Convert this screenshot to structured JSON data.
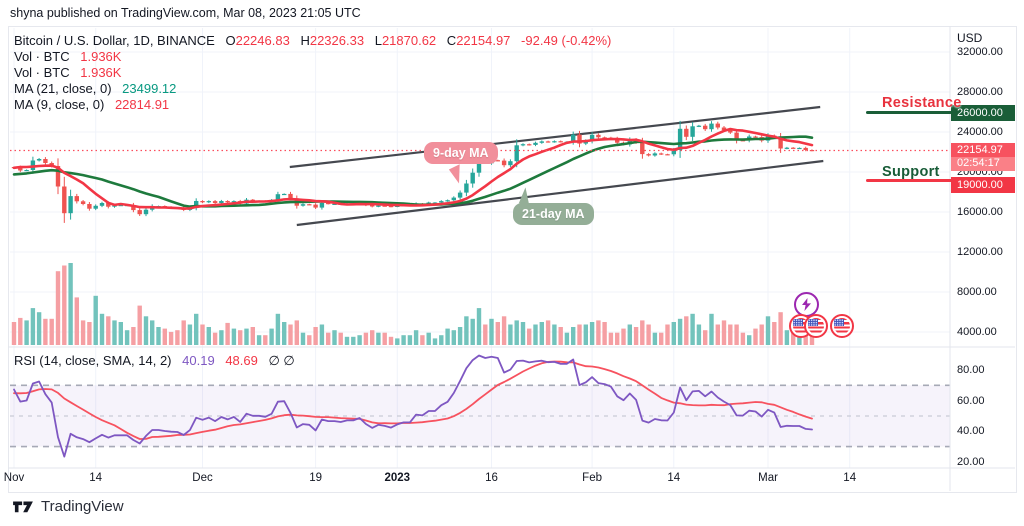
{
  "header": {
    "published_line": "shyna published on TradingView.com, Mar 08, 2023 21:05 UTC"
  },
  "legend": {
    "title": "Bitcoin / U.S. Dollar, 1D, BINANCE",
    "o_label": "O",
    "o": "22246.83",
    "h_label": "H",
    "h": "22326.33",
    "l_label": "L",
    "l": "21870.62",
    "c_label": "C",
    "c": "22154.97",
    "change": "-92.49 (-0.42%)",
    "vol1_label": "Vol · BTC",
    "vol1_value": "1.936K",
    "vol2_label": "Vol · BTC",
    "vol2_value": "1.936K",
    "ma21_label": "MA (21, close, 0)",
    "ma21_value": "23499.12",
    "ma9_label": "MA (9, close, 0)",
    "ma9_value": "22814.91",
    "rsi_label": "RSI (14, close, SMA, 14, 2)",
    "rsi_value1": "40.19",
    "rsi_value2": "48.69",
    "rsi_empty": "∅  ∅"
  },
  "annotations": {
    "resistance": "Resistance",
    "support": "Support",
    "ma9_bubble": "9-day MA",
    "ma21_bubble": "21-day MA"
  },
  "axis": {
    "currency": "USD",
    "price_tag": {
      "price": "22154.97",
      "countdown": "02:54:17"
    },
    "resistance_badge": "26000.00",
    "support_badge": "19000.00"
  },
  "footer": {
    "brand": "TradingView"
  },
  "colors": {
    "up": "#26a69a",
    "down": "#ef5350",
    "vol_up": "#72c3bc",
    "vol_down": "#f59fa3",
    "ma_fast": "#f23645",
    "ma_slow": "#1e7a3d",
    "rsi": "#7e57c2",
    "rsi_signal": "#f7525f",
    "grid": "#f0f3fa",
    "channel": "#45484f",
    "dotted_last": "#fb4d5c",
    "band_fill": "rgba(126,87,194,0.07)",
    "dash_strong": "#a6a9b6",
    "dash_light": "#c9ccd6",
    "separator": "#e3e6ec"
  },
  "chart_data": {
    "type": "candlestick",
    "symbol": "BINANCE:BTCUSD",
    "timeframe": "1D",
    "start_date": "2022-11-01",
    "title": "Bitcoin / U.S. Dollar, 1D, BINANCE",
    "price_axis_title": "USD",
    "price_ticks": [
      32000,
      28000,
      24000,
      20000,
      16000,
      12000,
      8000,
      4000
    ],
    "rsi_ticks": [
      80,
      60,
      40,
      20
    ],
    "rsi_levels": {
      "upper": 70,
      "middle": 50,
      "lower": 30
    },
    "x_ticks": [
      {
        "label": "Nov",
        "day": 0
      },
      {
        "label": "14",
        "day": 13
      },
      {
        "label": "Dec",
        "day": 30
      },
      {
        "label": "19",
        "day": 48
      },
      {
        "label": "2023",
        "day": 61,
        "bold": true
      },
      {
        "label": "16",
        "day": 76
      },
      {
        "label": "Feb",
        "day": 92
      },
      {
        "label": "14",
        "day": 105
      },
      {
        "label": "Mar",
        "day": 120
      },
      {
        "label": "14",
        "day": 133
      }
    ],
    "price_ylim": [
      2700,
      34200
    ],
    "rsi_ylim": [
      16,
      93
    ],
    "x_range_days": [
      0,
      136
    ],
    "last": {
      "price": 22154.97,
      "countdown": "02:54:17"
    },
    "levels": {
      "resistance": 26000,
      "support": 19000
    },
    "channel": {
      "upper": [
        [
          43.9,
          20500
        ],
        [
          128.3,
          26500
        ]
      ],
      "lower": [
        [
          45.0,
          14700
        ],
        [
          128.8,
          21100
        ]
      ]
    },
    "indicators": {
      "ma_fast_len": 9,
      "ma_slow_len": 21,
      "rsi_len": 14,
      "rsi_smooth_len": 14
    },
    "warmup_closes": [
      18500,
      18800,
      19200,
      19440,
      19160,
      19380,
      19170,
      19070,
      18900,
      19300,
      19100,
      19150,
      19300,
      19550,
      19150,
      19300,
      19550,
      19300,
      19200,
      19050,
      19150,
      19400,
      19600,
      20100,
      20800,
      20750,
      20600,
      20500,
      20490,
      20500
    ],
    "closes": [
      20480,
      20150,
      20200,
      21150,
      21300,
      20900,
      20600,
      18550,
      15880,
      17590,
      17070,
      16800,
      16330,
      16620,
      16900,
      16530,
      16700,
      16700,
      16700,
      16190,
      15780,
      16230,
      16600,
      16600,
      16520,
      16460,
      16440,
      16210,
      16440,
      17100,
      16970,
      17090,
      16890,
      17100,
      16970,
      17090,
      16840,
      17230,
      17130,
      17130,
      17090,
      17210,
      17780,
      17810,
      17360,
      16630,
      16780,
      16740,
      16440,
      16900,
      16820,
      16820,
      16780,
      16840,
      16840,
      16920,
      16700,
      16550,
      16640,
      16600,
      16540,
      16620,
      16670,
      16670,
      16860,
      16840,
      16950,
      16950,
      17090,
      17180,
      17440,
      17940,
      18850,
      19930,
      20950,
      20870,
      21180,
      21140,
      20680,
      21080,
      22670,
      22780,
      22710,
      22920,
      23060,
      23010,
      23080,
      23020,
      23030,
      23740,
      22840,
      23120,
      23720,
      23470,
      23430,
      23330,
      22930,
      22760,
      23240,
      22960,
      21790,
      21650,
      21860,
      21780,
      21770,
      22200,
      24320,
      23520,
      24570,
      24630,
      24280,
      24840,
      24450,
      24180,
      23940,
      23180,
      23160,
      23550,
      23490,
      23140,
      23640,
      23460,
      22350,
      22430,
      22410,
      22410,
      22200,
      22155
    ],
    "volumes_rel": [
      28,
      33,
      30,
      45,
      40,
      32,
      32,
      90,
      97,
      100,
      58,
      30,
      28,
      60,
      38,
      35,
      30,
      28,
      18,
      22,
      48,
      35,
      30,
      22,
      20,
      16,
      18,
      30,
      25,
      38,
      25,
      22,
      15,
      18,
      27,
      20,
      18,
      20,
      22,
      12,
      12,
      20,
      38,
      28,
      25,
      30,
      15,
      12,
      22,
      25,
      15,
      18,
      15,
      10,
      10,
      12,
      15,
      18,
      15,
      15,
      10,
      8,
      12,
      12,
      18,
      12,
      15,
      8,
      12,
      20,
      18,
      22,
      35,
      32,
      45,
      25,
      32,
      28,
      35,
      25,
      30,
      28,
      20,
      25,
      28,
      30,
      25,
      22,
      15,
      22,
      25,
      25,
      28,
      30,
      28,
      15,
      15,
      20,
      25,
      22,
      30,
      25,
      15,
      15,
      25,
      28,
      32,
      35,
      38,
      25,
      18,
      38,
      25,
      30,
      25,
      25,
      15,
      12,
      20,
      25,
      35,
      28,
      40,
      18,
      18,
      25,
      32,
      35
    ]
  }
}
